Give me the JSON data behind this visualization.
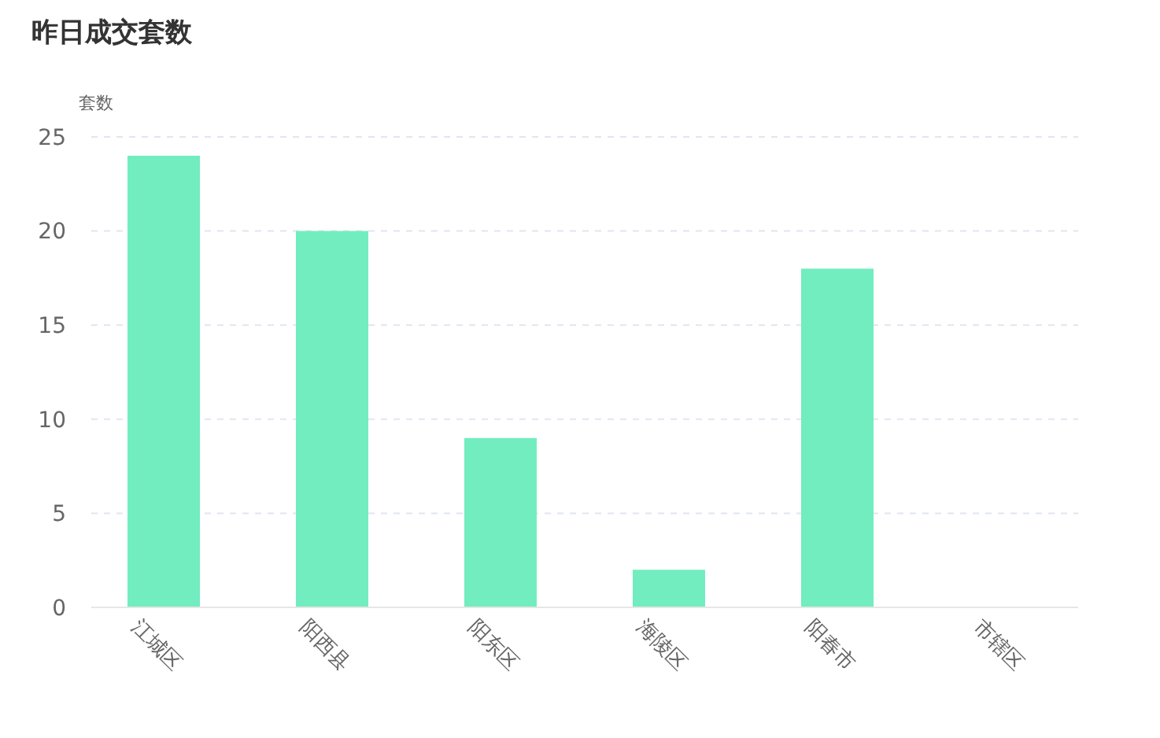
{
  "chart_data": {
    "type": "bar",
    "title": "昨日成交套数",
    "ylabel": "套数",
    "categories": [
      "江城区",
      "阳西县",
      "阳东区",
      "海陵区",
      "阳春市",
      "市辖区"
    ],
    "values": [
      24,
      20,
      9,
      2,
      18,
      0
    ],
    "color": "#72edbf",
    "ylim": [
      0,
      25
    ],
    "yticks": [
      0,
      5,
      10,
      15,
      20,
      25
    ],
    "grid": "y"
  }
}
